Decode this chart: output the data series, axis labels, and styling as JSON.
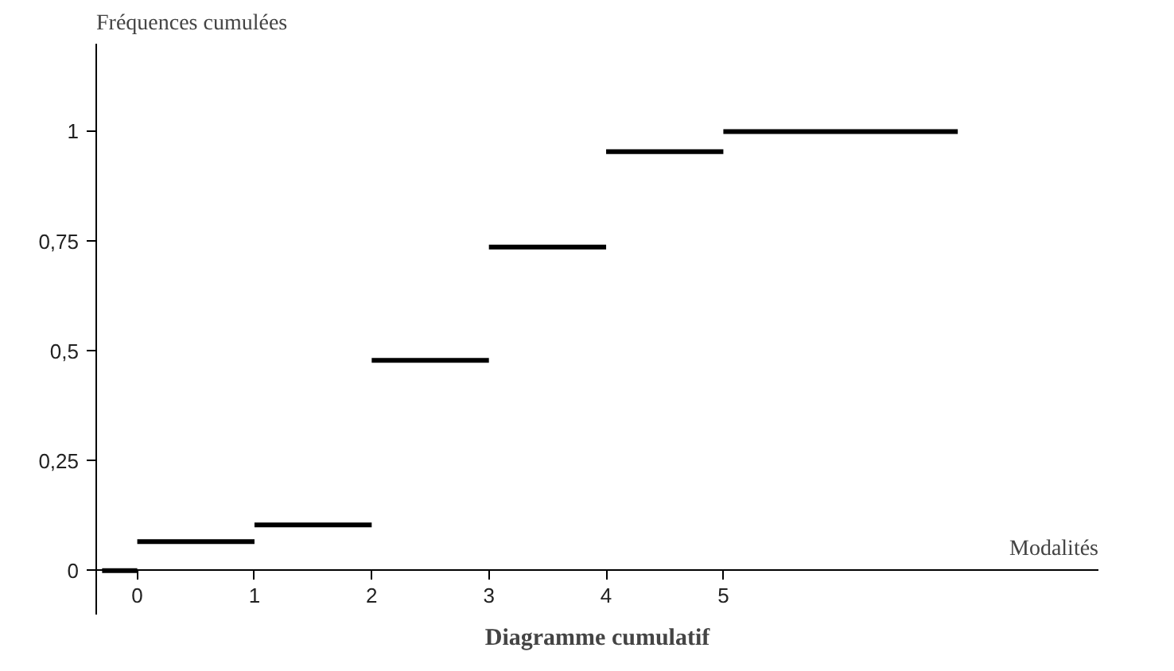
{
  "chart_data": {
    "type": "step",
    "title": "Diagramme cumulatif",
    "xlabel": "Modalités",
    "ylabel": "Fréquences cumulées",
    "x": [
      -0.3,
      0,
      1,
      2,
      3,
      4,
      5,
      7
    ],
    "series": [
      {
        "color": "#000000",
        "values": [
          0,
          0.066,
          0.104,
          0.479,
          0.737,
          0.954,
          1,
          1
        ]
      }
    ],
    "xlim": [
      -0.35,
      8.2
    ],
    "ylim": [
      -0.1,
      1.2
    ],
    "xticks": [
      0,
      1,
      2,
      3,
      4,
      5
    ],
    "yticks": [
      0,
      {
        "value": 0.25,
        "label": "0,25"
      },
      {
        "value": 0.5,
        "label": "0,5"
      },
      {
        "value": 0.75,
        "label": "0,75"
      },
      1
    ],
    "grid": false
  }
}
